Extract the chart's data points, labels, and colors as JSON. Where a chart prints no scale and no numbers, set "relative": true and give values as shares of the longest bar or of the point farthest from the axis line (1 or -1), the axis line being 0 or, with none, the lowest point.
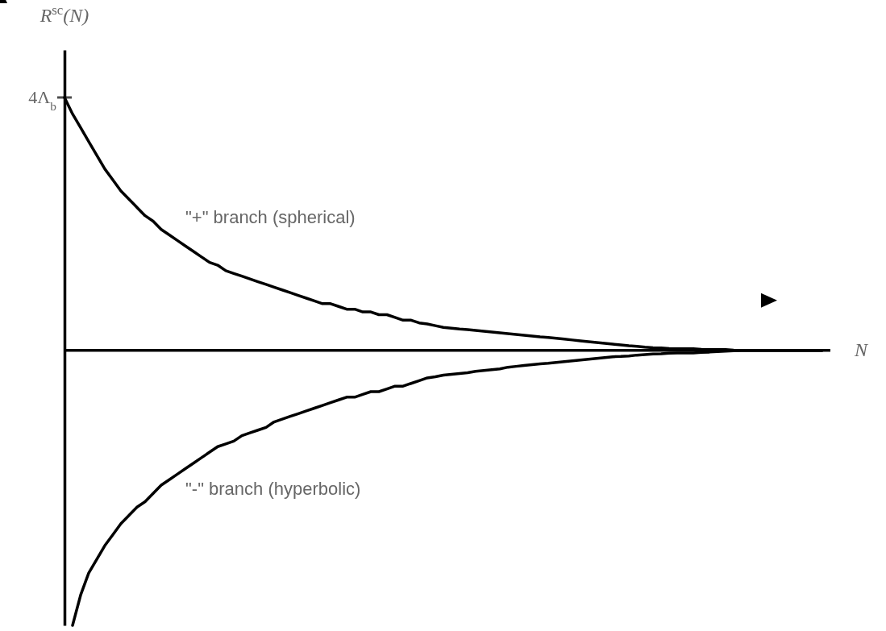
{
  "chart_data": {
    "type": "line",
    "relative": true,
    "xlabel": "N",
    "ylabel": "R$^{sc}$(N)",
    "categories": [
      null,
      null,
      null,
      null,
      null,
      null,
      null,
      null,
      null,
      null,
      null,
      null,
      null,
      null,
      null,
      null,
      null,
      null,
      null,
      null,
      null,
      null,
      null,
      null,
      null,
      null,
      null,
      null,
      null,
      null,
      null,
      null,
      null,
      null,
      null,
      null,
      null,
      null,
      null,
      null,
      null,
      null,
      null,
      null,
      null,
      null,
      null,
      null,
      null,
      null,
      null,
      null,
      null,
      null,
      null,
      null,
      null,
      null,
      null,
      null,
      null,
      null,
      null,
      null,
      null,
      null,
      null,
      null,
      null,
      null,
      null,
      null,
      null,
      null,
      null,
      null,
      null,
      null,
      null,
      null,
      null,
      null,
      null,
      null,
      null,
      null,
      null,
      null,
      null,
      null,
      null,
      null,
      null,
      null,
      null
    ],
    "series": [
      {
        "name": "\"+\" branch (spherical)",
        "color": "#000000",
        "values": [
          0.92,
          0.86,
          0.81,
          0.76,
          0.71,
          0.66,
          0.62,
          0.58,
          0.55,
          0.52,
          0.49,
          0.47,
          0.44,
          0.42,
          0.4,
          0.38,
          0.36,
          0.34,
          0.32,
          0.31,
          0.29,
          0.28,
          0.27,
          0.26,
          0.25,
          0.24,
          0.23,
          0.22,
          0.21,
          0.2,
          0.19,
          0.18,
          0.17,
          0.17,
          0.16,
          0.15,
          0.15,
          0.14,
          0.14,
          0.13,
          0.13,
          0.12,
          0.11,
          0.11,
          0.1,
          0.096,
          0.09,
          0.084,
          0.081,
          0.078,
          0.076,
          0.073,
          0.07,
          0.067,
          0.064,
          0.061,
          0.058,
          0.055,
          0.052,
          0.049,
          0.047,
          0.044,
          0.041,
          0.038,
          0.035,
          0.032,
          0.029,
          0.026,
          0.023,
          0.02,
          0.017,
          0.015,
          0.012,
          0.01,
          0.009,
          0.007,
          0.006,
          0.006,
          0.006,
          0.004,
          0.003,
          0.003,
          0.003,
          0.001,
          0,
          0,
          0,
          0,
          0,
          0,
          0,
          0,
          0,
          0,
          0
        ]
      },
      {
        "name": "\"-\" branch (hyperbolic)",
        "color": "#000000",
        "values": [
          null,
          -1,
          -0.89,
          -0.81,
          -0.76,
          -0.71,
          -0.67,
          -0.63,
          -0.6,
          -0.57,
          -0.55,
          -0.52,
          -0.49,
          -0.47,
          -0.45,
          -0.43,
          -0.41,
          -0.39,
          -0.37,
          -0.35,
          -0.34,
          -0.33,
          -0.31,
          -0.3,
          -0.29,
          -0.28,
          -0.26,
          -0.25,
          -0.24,
          -0.23,
          -0.22,
          -0.21,
          -0.2,
          -0.19,
          -0.18,
          -0.17,
          -0.17,
          -0.16,
          -0.15,
          -0.15,
          -0.14,
          -0.13,
          -0.13,
          -0.12,
          -0.11,
          -0.1,
          -0.096,
          -0.09,
          -0.087,
          -0.084,
          -0.081,
          -0.076,
          -0.073,
          -0.07,
          -0.067,
          -0.061,
          -0.058,
          -0.055,
          -0.052,
          -0.049,
          -0.047,
          -0.044,
          -0.041,
          -0.038,
          -0.035,
          -0.032,
          -0.029,
          -0.026,
          -0.023,
          -0.022,
          -0.02,
          -0.017,
          -0.015,
          -0.013,
          -0.012,
          -0.01,
          -0.009,
          -0.009,
          -0.009,
          -0.007,
          -0.006,
          -0.004,
          -0.003,
          -0.001,
          0,
          0,
          0,
          0,
          0,
          0,
          0,
          0,
          0,
          0,
          0
        ]
      }
    ],
    "annotations": [
      "4Λ$_{b}$"
    ]
  }
}
